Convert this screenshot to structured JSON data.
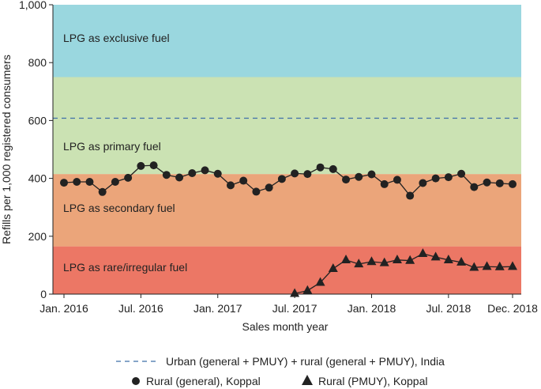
{
  "chart_data": {
    "type": "line",
    "xlabel": "Sales month year",
    "ylabel": "Refills per 1,000 registered consumers",
    "ylim": [
      0,
      1000
    ],
    "xlim": [
      "2016-01",
      "2018-12"
    ],
    "x_ticks": [
      {
        "label": "Jan. 2016",
        "month": "2016-01"
      },
      {
        "label": "Jul. 2016",
        "month": "2016-07"
      },
      {
        "label": "Jan. 2017",
        "month": "2017-01"
      },
      {
        "label": "Jul. 2017",
        "month": "2017-07"
      },
      {
        "label": "Jan. 2018",
        "month": "2018-01"
      },
      {
        "label": "Jul. 2018",
        "month": "2018-07"
      },
      {
        "label": "Dec. 2018",
        "month": "2018-12"
      }
    ],
    "y_ticks": [
      {
        "label": "0",
        "value": 0
      },
      {
        "label": "200",
        "value": 200
      },
      {
        "label": "400",
        "value": 400
      },
      {
        "label": "600",
        "value": 600
      },
      {
        "label": "800",
        "value": 800
      },
      {
        "label": "1,000",
        "value": 1000
      }
    ],
    "bands": [
      {
        "label": "LPG as rare/irregular fuel",
        "from": 0,
        "to": 165,
        "color": "#ec7765"
      },
      {
        "label": "LPG as secondary fuel",
        "from": 165,
        "to": 415,
        "color": "#eba57a"
      },
      {
        "label": "LPG as primary fuel",
        "from": 415,
        "to": 750,
        "color": "#cbe2b3"
      },
      {
        "label": "LPG as exclusive fuel",
        "from": 750,
        "to": 1000,
        "color": "#9ad7df"
      }
    ],
    "reference_line": {
      "name": "Urban (general + PMUY) + rural (general + PMUY), India",
      "value": 608,
      "color": "#3f6fa8"
    },
    "series": [
      {
        "name": "Rural (general), Koppal",
        "marker": "circle",
        "color": "#222222",
        "points": [
          {
            "x": "2016-01",
            "y": 385
          },
          {
            "x": "2016-02",
            "y": 388
          },
          {
            "x": "2016-03",
            "y": 388
          },
          {
            "x": "2016-04",
            "y": 353
          },
          {
            "x": "2016-05",
            "y": 388
          },
          {
            "x": "2016-06",
            "y": 402
          },
          {
            "x": "2016-07",
            "y": 443
          },
          {
            "x": "2016-08",
            "y": 445
          },
          {
            "x": "2016-09",
            "y": 412
          },
          {
            "x": "2016-10",
            "y": 403
          },
          {
            "x": "2016-11",
            "y": 418
          },
          {
            "x": "2016-12",
            "y": 428
          },
          {
            "x": "2017-01",
            "y": 416
          },
          {
            "x": "2017-02",
            "y": 376
          },
          {
            "x": "2017-03",
            "y": 392
          },
          {
            "x": "2017-04",
            "y": 354
          },
          {
            "x": "2017-05",
            "y": 368
          },
          {
            "x": "2017-06",
            "y": 398
          },
          {
            "x": "2017-07",
            "y": 417
          },
          {
            "x": "2017-08",
            "y": 415
          },
          {
            "x": "2017-09",
            "y": 438
          },
          {
            "x": "2017-10",
            "y": 432
          },
          {
            "x": "2017-11",
            "y": 396
          },
          {
            "x": "2017-12",
            "y": 405
          },
          {
            "x": "2018-01",
            "y": 414
          },
          {
            "x": "2018-02",
            "y": 380
          },
          {
            "x": "2018-03",
            "y": 395
          },
          {
            "x": "2018-04",
            "y": 340
          },
          {
            "x": "2018-05",
            "y": 384
          },
          {
            "x": "2018-06",
            "y": 400
          },
          {
            "x": "2018-07",
            "y": 404
          },
          {
            "x": "2018-08",
            "y": 416
          },
          {
            "x": "2018-09",
            "y": 370
          },
          {
            "x": "2018-10",
            "y": 386
          },
          {
            "x": "2018-11",
            "y": 383
          },
          {
            "x": "2018-12",
            "y": 380
          }
        ]
      },
      {
        "name": "Rural (PMUY), Koppal",
        "marker": "triangle",
        "color": "#222222",
        "points": [
          {
            "x": "2017-07",
            "y": 2
          },
          {
            "x": "2017-08",
            "y": 12
          },
          {
            "x": "2017-09",
            "y": 40
          },
          {
            "x": "2017-10",
            "y": 88
          },
          {
            "x": "2017-11",
            "y": 118
          },
          {
            "x": "2017-12",
            "y": 104
          },
          {
            "x": "2018-01",
            "y": 112
          },
          {
            "x": "2018-02",
            "y": 108
          },
          {
            "x": "2018-03",
            "y": 118
          },
          {
            "x": "2018-04",
            "y": 116
          },
          {
            "x": "2018-05",
            "y": 140
          },
          {
            "x": "2018-06",
            "y": 128
          },
          {
            "x": "2018-07",
            "y": 118
          },
          {
            "x": "2018-08",
            "y": 110
          },
          {
            "x": "2018-09",
            "y": 92
          },
          {
            "x": "2018-10",
            "y": 95
          },
          {
            "x": "2018-11",
            "y": 94
          },
          {
            "x": "2018-12",
            "y": 95
          }
        ]
      }
    ],
    "grid": false,
    "legend_position": "bottom-center"
  }
}
